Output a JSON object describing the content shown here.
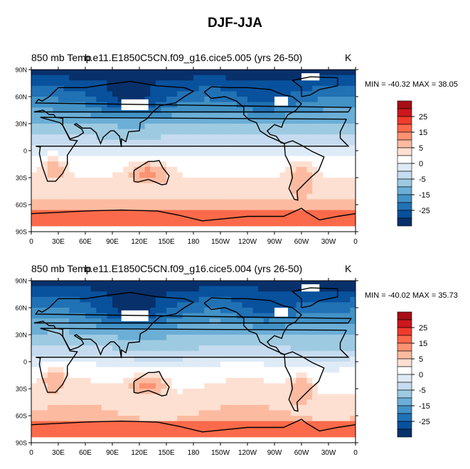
{
  "title": "DJF-JJA",
  "panels": [
    {
      "left_title": "850 mb Temp",
      "center_title": "b.e11.E1850C5CN.f09_g16.cice5.005 (yrs 26-50)",
      "units": "K",
      "min_max": "MIN = -40.32 MAX =  38.05"
    },
    {
      "left_title": "850 mb Temp",
      "center_title": "b.e11.E1850C5CN.f09_g16.cice5.004 (yrs 26-50)",
      "units": "K",
      "min_max": "MIN = -40.02 MAX =  35.73"
    }
  ],
  "chart_data": [
    {
      "type": "heatmap",
      "title": "850 mb Temp",
      "subtitle": "b.e11.E1850C5CN.f09_g16.cice5.005 (yrs 26-50)",
      "units": "K",
      "min": -40.32,
      "max": 38.05,
      "x_ticks": [
        "0",
        "30E",
        "60E",
        "90E",
        "120E",
        "150E",
        "180",
        "150W",
        "120W",
        "90W",
        "60W",
        "30W",
        "0"
      ],
      "y_ticks": [
        "90N",
        "60N",
        "30N",
        "0",
        "30S",
        "60S",
        "90S"
      ],
      "xlim": [
        0,
        360
      ],
      "ylim": [
        -90,
        90
      ],
      "colorbar_labels": [
        "25",
        "15",
        "5",
        "0",
        "-5",
        "-15",
        "-25"
      ]
    },
    {
      "type": "heatmap",
      "title": "850 mb Temp",
      "subtitle": "b.e11.E1850C5CN.f09_g16.cice5.004 (yrs 26-50)",
      "units": "K",
      "min": -40.02,
      "max": 35.73,
      "x_ticks": [
        "0",
        "30E",
        "60E",
        "90E",
        "120E",
        "150E",
        "180",
        "150W",
        "120W",
        "90W",
        "60W",
        "30W",
        "0"
      ],
      "y_ticks": [
        "90N",
        "60N",
        "30N",
        "0",
        "30S",
        "60S",
        "90S"
      ],
      "xlim": [
        0,
        360
      ],
      "ylim": [
        -90,
        90
      ],
      "colorbar_labels": [
        "25",
        "15",
        "5",
        "0",
        "-5",
        "-15",
        "-25"
      ]
    }
  ],
  "colorbar_colors": [
    "#a50f15",
    "#cb181d",
    "#ef3b2c",
    "#fb6a4a",
    "#fc9272",
    "#fcbba1",
    "#fee0d2",
    "#ffffff",
    "#deebf7",
    "#c6dbef",
    "#9ecae1",
    "#6baed6",
    "#4292c6",
    "#2171b5",
    "#08519c",
    "#08306b"
  ],
  "missing_color": "#ffffff"
}
